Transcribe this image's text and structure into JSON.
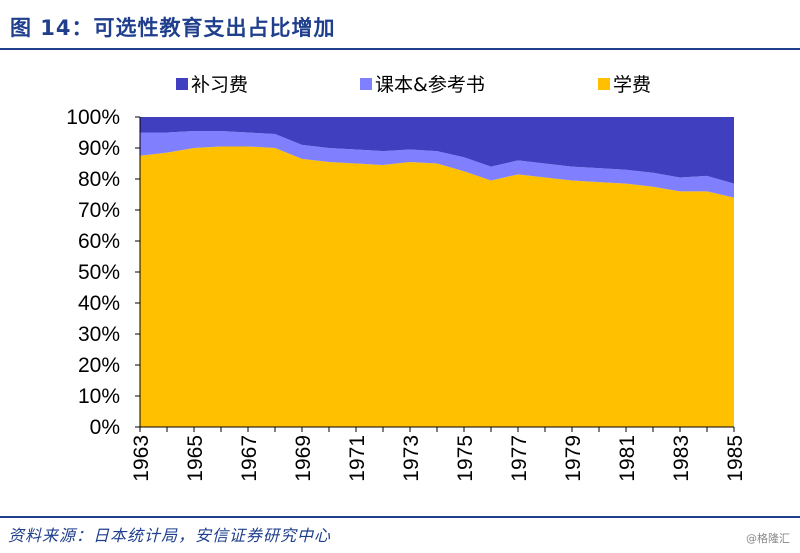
{
  "header": {
    "title": "图 14：可选性教育支出占比增加"
  },
  "footer": {
    "source": "资料来源：日本统计局，安信证券研究中心",
    "watermark": "@格隆汇"
  },
  "colors": {
    "tutoring": "#3f3fbf",
    "books": "#8080ff",
    "tuition": "#ffc000",
    "brand": "#1f3e8c"
  },
  "chart_data": {
    "type": "area",
    "stacked": true,
    "x": [
      1963,
      1964,
      1965,
      1966,
      1967,
      1968,
      1969,
      1970,
      1971,
      1972,
      1973,
      1974,
      1975,
      1976,
      1977,
      1978,
      1979,
      1980,
      1981,
      1982,
      1983,
      1984,
      1985
    ],
    "x_tick_labels": [
      "1963",
      "1965",
      "1967",
      "1969",
      "1971",
      "1973",
      "1975",
      "1977",
      "1979",
      "1981",
      "1983",
      "1985"
    ],
    "y_tick_labels": [
      "0%",
      "10%",
      "20%",
      "30%",
      "40%",
      "50%",
      "60%",
      "70%",
      "80%",
      "90%",
      "100%"
    ],
    "ylim": [
      0,
      100
    ],
    "legend_position": "top",
    "grid": false,
    "series": [
      {
        "name": "补习费",
        "values": [
          5,
          5,
          4.5,
          4.5,
          5,
          5.5,
          9,
          10,
          10.5,
          11,
          10.5,
          11,
          13,
          16,
          14,
          15,
          16,
          16.5,
          17,
          18,
          19.5,
          19,
          21.5
        ]
      },
      {
        "name": "课本&参考书",
        "values": [
          7.5,
          6.5,
          5.5,
          5,
          4.5,
          4.5,
          4.5,
          4.5,
          4.5,
          4.5,
          4,
          4,
          4.5,
          4.5,
          4.5,
          4.5,
          4.5,
          4.5,
          4.5,
          4.5,
          4.5,
          5,
          4.5
        ]
      },
      {
        "name": "学费",
        "values": [
          87.5,
          88.5,
          90,
          90.5,
          90.5,
          90,
          86.5,
          85.5,
          85,
          84.5,
          85.5,
          85,
          82.5,
          79.5,
          81.5,
          80.5,
          79.5,
          79,
          78.5,
          77.5,
          76,
          76,
          74
        ]
      }
    ]
  }
}
